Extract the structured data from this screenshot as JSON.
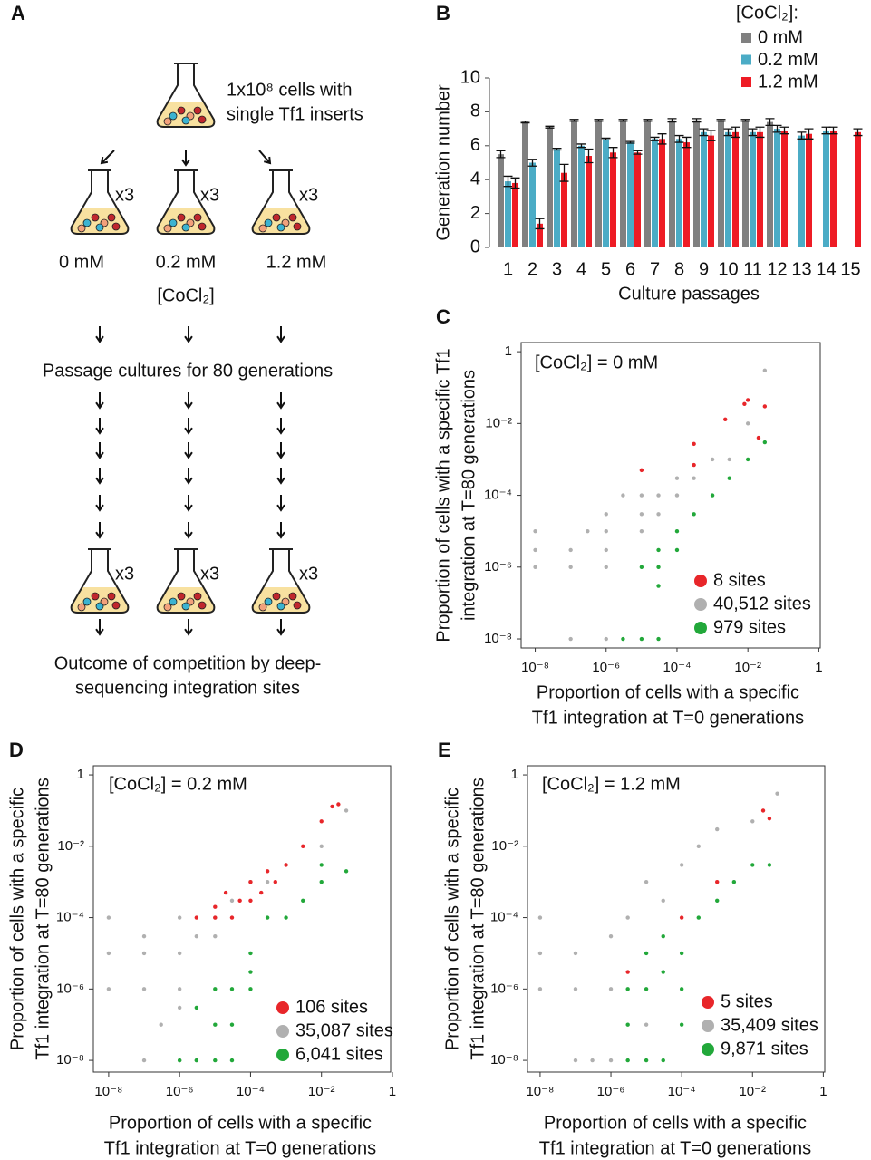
{
  "diagram": {
    "panel": "A",
    "top_label": [
      "1x10⁸ cells with",
      "single Tf1 inserts"
    ],
    "multiplier": "x3",
    "concentrations": [
      "0 mM",
      "0.2 mM",
      "1.2 mM"
    ],
    "concentration_label": "[CoCl₂]",
    "passage_text": "Passage cultures for 80 generations",
    "outcome_text": [
      "Outcome of competition by deep-",
      "sequencing integration sites"
    ]
  },
  "chart_data": [
    {
      "type": "bar",
      "panel": "B",
      "ylabel": "Generation number",
      "xlabel": "Culture passages",
      "legend_title": "[CoCl₂]:",
      "categories": [
        "1",
        "2",
        "3",
        "4",
        "5",
        "6",
        "7",
        "8",
        "9",
        "10",
        "11",
        "12",
        "13",
        "14",
        "15"
      ],
      "ylim": [
        0,
        10
      ],
      "yticks": [
        0,
        2,
        4,
        6,
        8,
        10
      ],
      "series": [
        {
          "name": "0 mM",
          "color": "#808080",
          "values": [
            5.5,
            7.4,
            7.1,
            7.5,
            7.5,
            7.5,
            7.5,
            7.5,
            7.5,
            7.5,
            7.5,
            7.4,
            null,
            null,
            null
          ],
          "errors": [
            0.2,
            0.05,
            0.05,
            0.05,
            0.05,
            0.05,
            0.05,
            0.1,
            0.1,
            0.05,
            0.05,
            0.2,
            null,
            null,
            null
          ]
        },
        {
          "name": "0.2 mM",
          "color": "#4bacc6",
          "values": [
            3.9,
            5.0,
            5.8,
            6.0,
            6.4,
            6.2,
            6.4,
            6.4,
            6.8,
            6.8,
            6.8,
            7.0,
            6.6,
            6.9,
            null
          ],
          "errors": [
            0.3,
            0.2,
            0.05,
            0.1,
            0.05,
            0.05,
            0.1,
            0.2,
            0.2,
            0.2,
            0.2,
            0.2,
            0.2,
            0.2,
            null
          ]
        },
        {
          "name": "1.2 mM",
          "color": "#ee1c25",
          "values": [
            3.8,
            1.4,
            4.4,
            5.4,
            5.6,
            5.6,
            6.4,
            6.2,
            6.6,
            6.8,
            6.8,
            6.9,
            6.7,
            6.9,
            6.8
          ],
          "errors": [
            0.3,
            0.3,
            0.5,
            0.4,
            0.3,
            0.1,
            0.3,
            0.3,
            0.3,
            0.3,
            0.3,
            0.2,
            0.3,
            0.2,
            0.2
          ]
        }
      ]
    },
    {
      "type": "scatter",
      "panel": "C",
      "annotation": "[CoCl₂] = 0 mM",
      "xlabel": [
        "Proportion of cells with a specific",
        "Tf1 integration at T=0 generations"
      ],
      "ylabel": [
        "Proportion of cells with a specific Tf1",
        "integration at T=80 generations"
      ],
      "xscale": "log",
      "yscale": "log",
      "xlim": [
        4e-09,
        1.1
      ],
      "ylim": [
        5.6e-09,
        1.8
      ],
      "xticks": [
        {
          "value": 1e-08,
          "label": "10⁻⁸"
        },
        {
          "value": 1e-06,
          "label": "10⁻⁶"
        },
        {
          "value": 0.0001,
          "label": "10⁻⁴"
        },
        {
          "value": 0.01,
          "label": "10⁻²"
        },
        1
      ],
      "yticks": [
        {
          "value": 1e-08,
          "label": "10⁻⁸"
        },
        {
          "value": 1e-06,
          "label": "10⁻⁶"
        },
        {
          "value": 0.0001,
          "label": "10⁻⁴"
        },
        {
          "value": 0.01,
          "label": "10⁻²"
        },
        1
      ],
      "series": [
        {
          "name": "8 sites",
          "color": "#e8262a",
          "x": [
            0.008,
            0.01,
            0.0023,
            0.0003,
            1e-05,
            0.0003,
            0.02,
            0.03
          ],
          "y": [
            0.035,
            0.045,
            0.013,
            0.0027,
            0.0005,
            0.0007,
            0.004,
            0.03
          ]
        },
        {
          "name": "40,512 sites",
          "color": "#b0b0b0",
          "x": [
            1e-08,
            1e-08,
            1e-08,
            1e-07,
            1e-07,
            3e-07,
            1e-06,
            1e-06,
            1e-06,
            1e-06,
            3e-06,
            1e-05,
            1e-05,
            1e-05,
            3e-05,
            3e-05,
            0.0001,
            0.0001,
            0.0003,
            0.001,
            0.003,
            0.01,
            0.03,
            1e-07,
            1e-06
          ],
          "y": [
            1e-05,
            3e-06,
            1e-06,
            3e-06,
            1e-06,
            1e-05,
            1e-06,
            3e-06,
            1e-05,
            3e-05,
            0.0001,
            1e-05,
            3e-05,
            0.0001,
            3e-05,
            0.0001,
            0.0001,
            0.0003,
            0.0003,
            0.001,
            0.001,
            0.01,
            0.3,
            1e-08,
            1e-08
          ]
        },
        {
          "name": "979 sites",
          "color": "#22a83a",
          "x": [
            3e-06,
            1e-05,
            3e-05,
            1e-05,
            3e-05,
            3e-05,
            0.0001,
            0.0003,
            0.001,
            0.003,
            0.01,
            0.03,
            0.0001,
            3e-05
          ],
          "y": [
            1e-08,
            1e-08,
            1e-08,
            1e-06,
            1e-06,
            3e-06,
            1e-05,
            3e-05,
            0.0001,
            0.0003,
            0.001,
            0.003,
            3e-06,
            3e-07
          ]
        }
      ]
    },
    {
      "type": "scatter",
      "panel": "D",
      "annotation": "[CoCl₂] = 0.2 mM",
      "xlabel": [
        "Proportion of cells with a specific",
        "Tf1 integration at T=0 generations"
      ],
      "ylabel": [
        "Proportion of cells with a specific",
        "Tf1 integration at T=80 generations"
      ],
      "xscale": "log",
      "yscale": "log",
      "xlim": [
        3.7e-09,
        0.89
      ],
      "ylim": [
        4.7e-09,
        1.8
      ],
      "xticks": [
        {
          "value": 1e-08,
          "label": "10⁻⁸"
        },
        {
          "value": 1e-06,
          "label": "10⁻⁶"
        },
        {
          "value": 0.0001,
          "label": "10⁻⁴"
        },
        {
          "value": 0.01,
          "label": "10⁻²"
        },
        1
      ],
      "yticks": [
        {
          "value": 1e-08,
          "label": "10⁻⁸"
        },
        {
          "value": 1e-06,
          "label": "10⁻⁶"
        },
        {
          "value": 0.0001,
          "label": "10⁻⁴"
        },
        {
          "value": 0.01,
          "label": "10⁻²"
        },
        1
      ],
      "series": [
        {
          "name": "106 sites",
          "color": "#e8262a",
          "x": [
            3e-06,
            1e-05,
            2e-05,
            3e-05,
            5e-05,
            0.0001,
            0.0001,
            0.0002,
            0.0003,
            0.0005,
            0.001,
            0.003,
            0.01,
            0.02,
            0.03,
            1e-05
          ],
          "y": [
            0.0001,
            0.0002,
            0.0005,
            0.0001,
            0.0003,
            0.001,
            0.0003,
            0.0005,
            0.002,
            0.001,
            0.003,
            0.01,
            0.05,
            0.13,
            0.15,
            0.0001
          ]
        },
        {
          "name": "35,087 sites",
          "color": "#b0b0b0",
          "x": [
            1e-08,
            1e-08,
            1e-08,
            1e-07,
            1e-07,
            1e-07,
            1e-06,
            1e-06,
            1e-06,
            3e-06,
            1e-05,
            1e-05,
            3e-05,
            0.0001,
            0.0003,
            0.001,
            0.01,
            0.05,
            1e-06,
            3e-06,
            3e-07,
            1e-07,
            1e-06
          ],
          "y": [
            0.0001,
            1e-05,
            1e-06,
            3e-05,
            1e-05,
            1e-06,
            1e-06,
            1e-05,
            0.0001,
            3e-05,
            0.0001,
            3e-05,
            0.0003,
            0.001,
            0.001,
            0.003,
            0.01,
            0.1,
            1e-08,
            1e-08,
            1e-07,
            1e-08,
            3e-07
          ]
        },
        {
          "name": "6,041 sites",
          "color": "#22a83a",
          "x": [
            1e-06,
            3e-06,
            1e-05,
            3e-05,
            1e-05,
            3e-05,
            0.0001,
            0.0001,
            0.0003,
            0.001,
            0.003,
            0.01,
            0.01,
            0.05,
            0.0001,
            3e-05,
            1e-05,
            3e-06
          ],
          "y": [
            1e-08,
            1e-08,
            1e-08,
            1e-08,
            1e-06,
            1e-06,
            1e-05,
            1e-06,
            0.0001,
            0.0001,
            0.0003,
            0.001,
            0.003,
            0.002,
            3e-06,
            1e-07,
            1e-07,
            3e-07
          ]
        }
      ]
    },
    {
      "type": "scatter",
      "panel": "E",
      "annotation": "[CoCl₂] = 1.2 mM",
      "xlabel": [
        "Proportion of cells with a specific",
        "Tf1 integration at T=0 generations"
      ],
      "ylabel": [
        "Proportion of cells with a specific",
        "Tf1 integration at T=80 generations"
      ],
      "xscale": "log",
      "yscale": "log",
      "xlim": [
        4.4e-09,
        1.1
      ],
      "ylim": [
        4.7e-09,
        1.8
      ],
      "xticks": [
        {
          "value": 1e-08,
          "label": "10⁻⁸"
        },
        {
          "value": 1e-06,
          "label": "10⁻⁶"
        },
        {
          "value": 0.0001,
          "label": "10⁻⁴"
        },
        {
          "value": 0.01,
          "label": "10⁻²"
        },
        1
      ],
      "yticks": [
        {
          "value": 1e-08,
          "label": "10⁻⁸"
        },
        {
          "value": 1e-06,
          "label": "10⁻⁶"
        },
        {
          "value": 0.0001,
          "label": "10⁻⁴"
        },
        {
          "value": 0.01,
          "label": "10⁻²"
        },
        1
      ],
      "series": [
        {
          "name": "5 sites",
          "color": "#e8262a",
          "x": [
            3e-06,
            0.0001,
            0.02,
            0.03,
            0.001
          ],
          "y": [
            3e-06,
            0.0001,
            0.1,
            0.06,
            0.001
          ]
        },
        {
          "name": "35,409 sites",
          "color": "#b0b0b0",
          "x": [
            1e-08,
            1e-08,
            1e-08,
            1e-07,
            1e-07,
            1e-06,
            1e-06,
            3e-06,
            1e-05,
            3e-05,
            0.0001,
            0.0003,
            0.001,
            0.01,
            0.05,
            1e-06,
            3e-07,
            1e-07,
            1e-05
          ],
          "y": [
            0.0001,
            1e-05,
            1e-06,
            1e-05,
            1e-06,
            1e-06,
            3e-05,
            0.0001,
            0.001,
            0.0003,
            0.003,
            0.01,
            0.03,
            0.05,
            0.3,
            1e-08,
            1e-08,
            1e-08,
            1e-07
          ]
        },
        {
          "name": "9,871 sites",
          "color": "#22a83a",
          "x": [
            3e-06,
            1e-05,
            3e-05,
            1e-05,
            3e-05,
            0.0001,
            0.0003,
            0.001,
            0.003,
            0.01,
            0.03,
            1e-05,
            3e-05,
            0.0001,
            3e-06,
            0.0001,
            3e-06
          ],
          "y": [
            1e-08,
            1e-08,
            1e-08,
            1e-06,
            3e-06,
            1e-05,
            0.0001,
            0.0003,
            0.001,
            0.003,
            0.003,
            1e-05,
            3e-05,
            1e-06,
            1e-06,
            1e-07,
            1e-07
          ]
        }
      ]
    }
  ]
}
